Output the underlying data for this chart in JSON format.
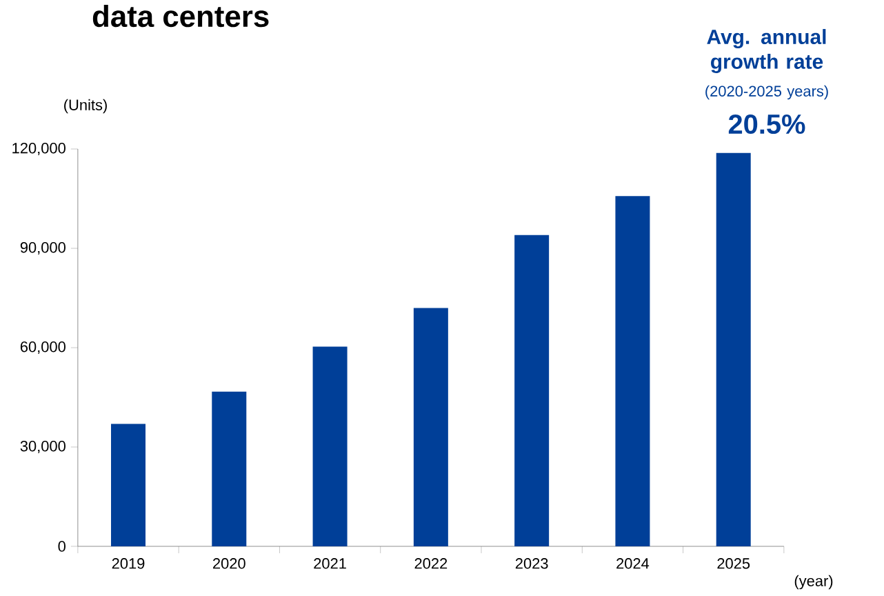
{
  "chart_data": {
    "type": "bar",
    "title": "data centers",
    "ylabel": "(Units)",
    "xlabel": "(year)",
    "categories": [
      "2019",
      "2020",
      "2021",
      "2022",
      "2023",
      "2024",
      "2025"
    ],
    "values": [
      37000,
      46700,
      60300,
      72000,
      94000,
      105800,
      118800
    ],
    "color": "#003f98",
    "ylim": [
      0,
      120000
    ],
    "yticks": [
      0,
      {
        "value": 30000,
        "label": "30,000"
      },
      {
        "value": 60000,
        "label": "60,000"
      },
      {
        "value": 90000,
        "label": "90,000"
      },
      {
        "value": 120000,
        "label": "120,000"
      }
    ],
    "grid": false,
    "annotations": [
      "Avg. annual growth rate",
      "(2020-2025 years)",
      "20.5%"
    ]
  }
}
